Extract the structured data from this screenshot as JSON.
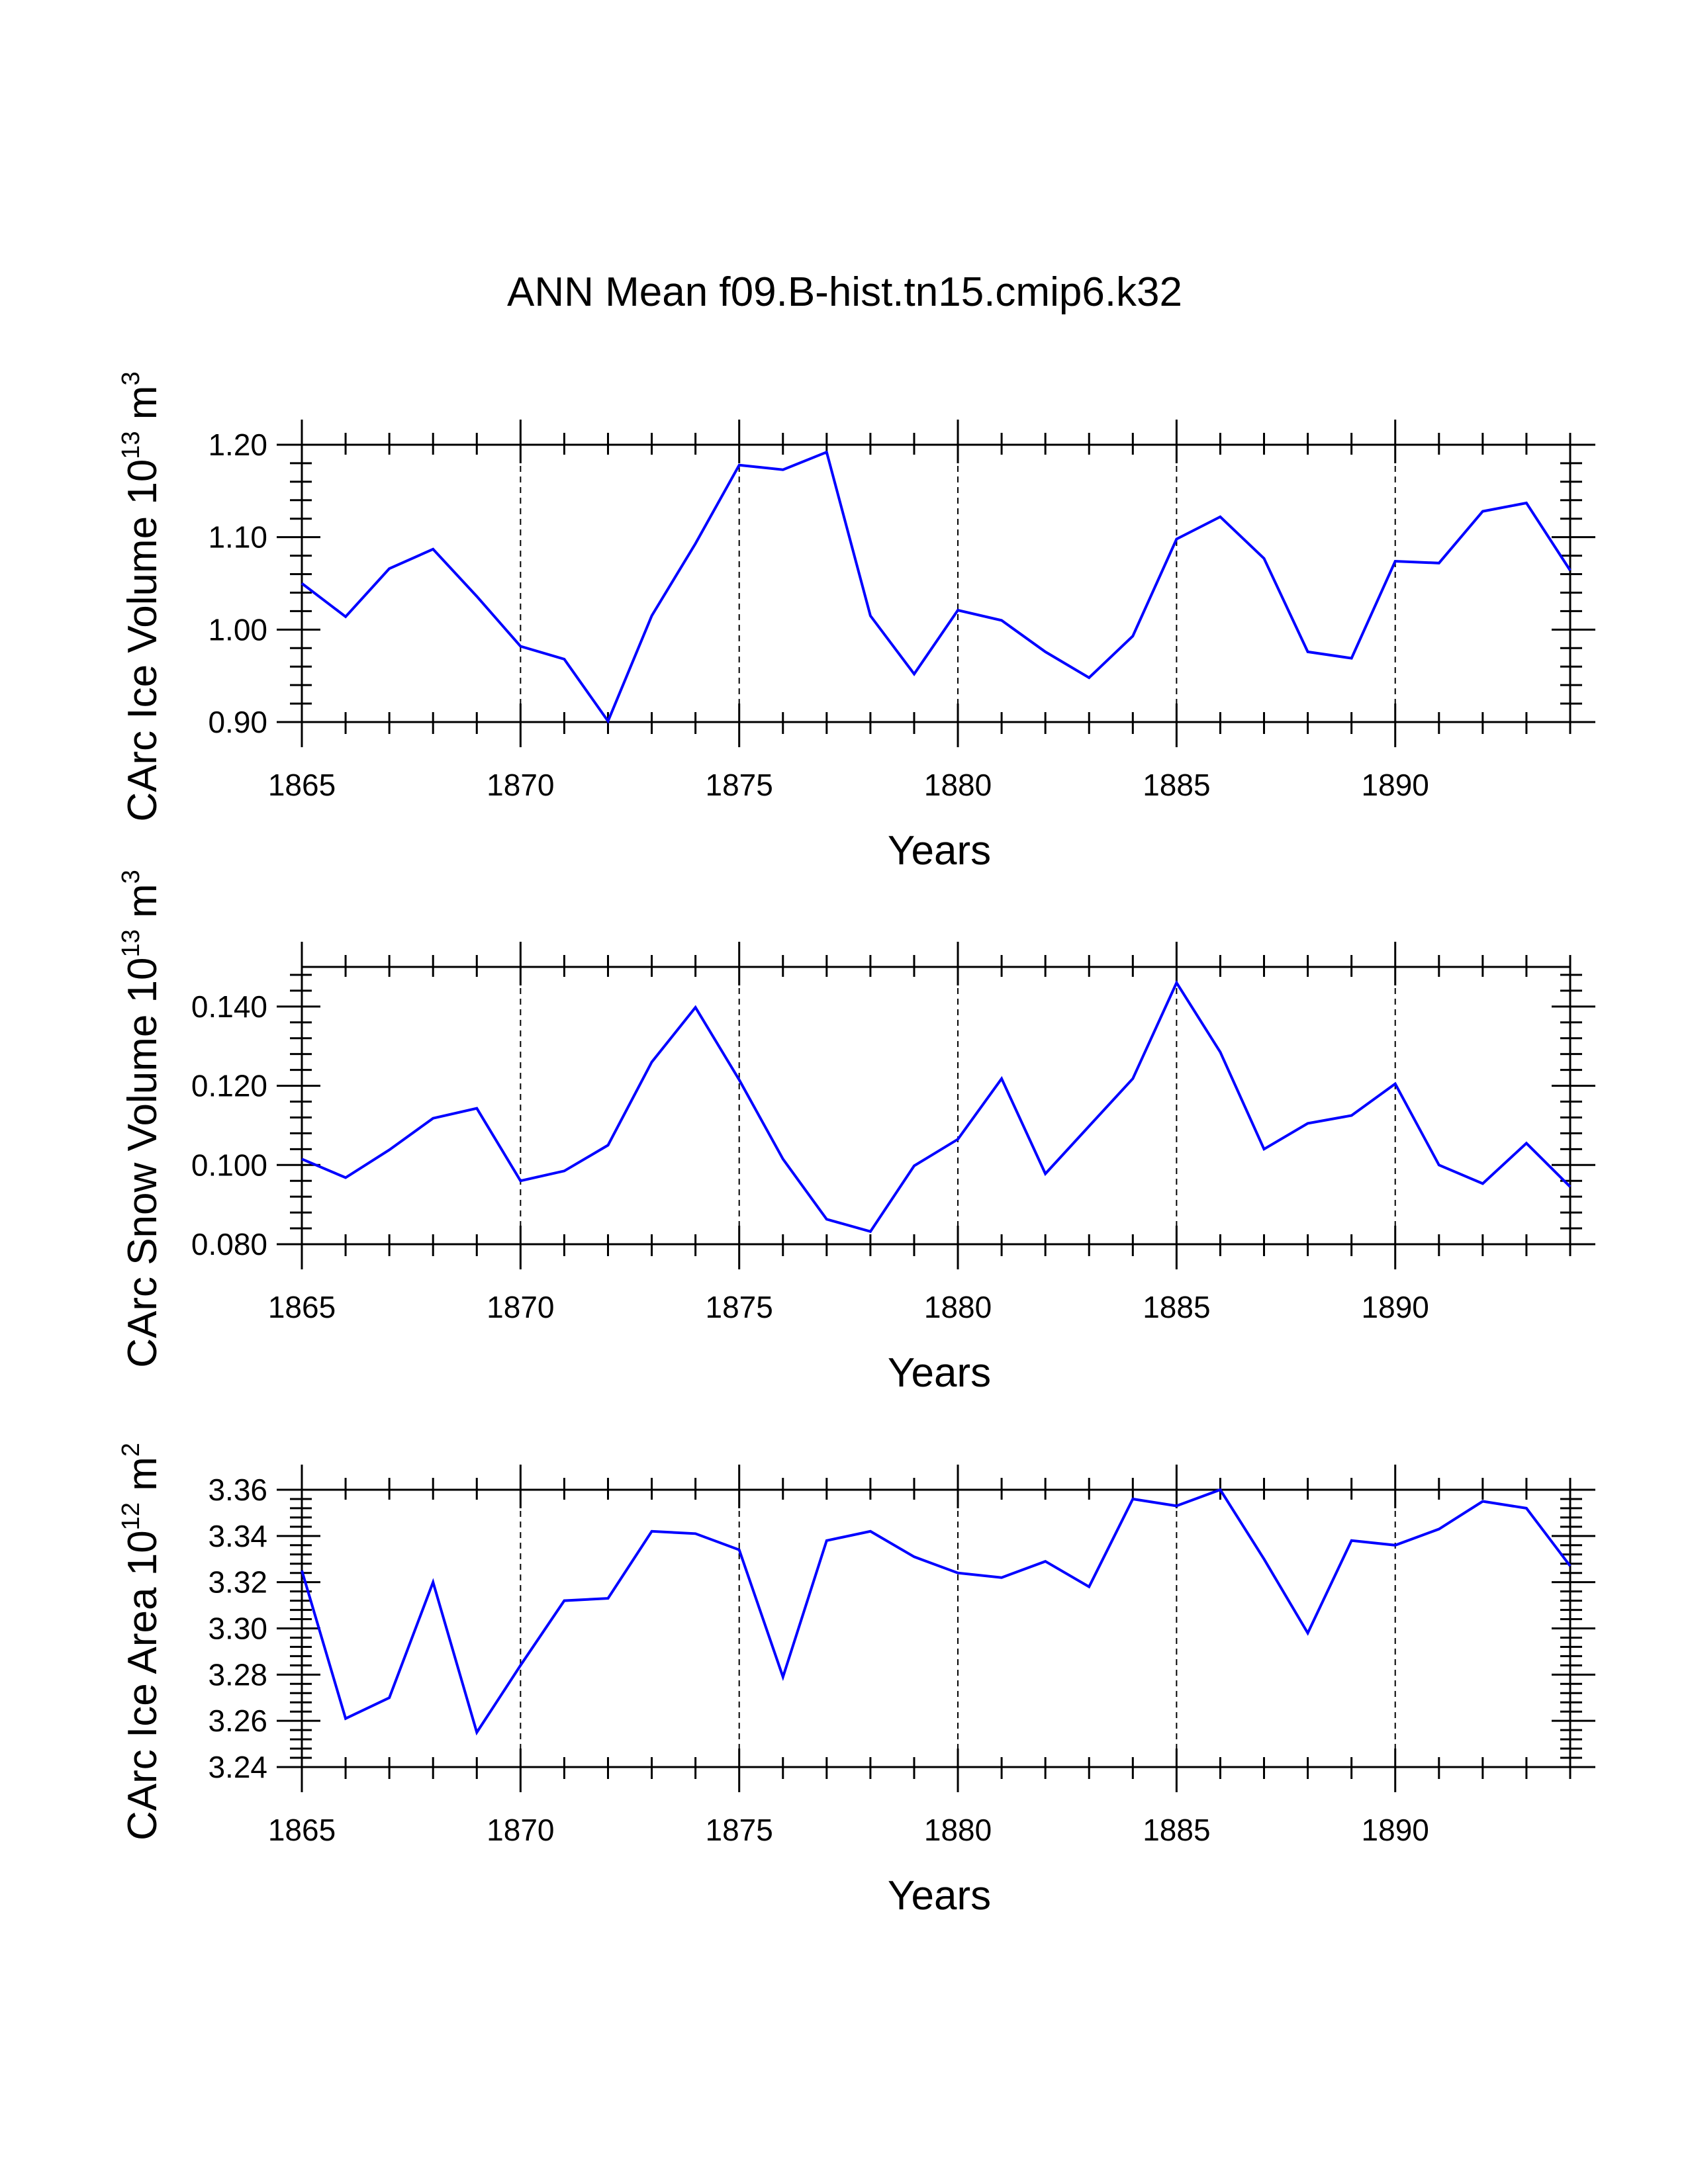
{
  "chart_data": {
    "title": "ANN Mean f09.B-hist.tn15.cmip6.k32",
    "panels": [
      {
        "type": "line",
        "ylabel": {
          "text": "CArc Ice Volume 10",
          "exponent": "13",
          "unit": " m",
          "unit_exponent": "3"
        },
        "xlabel": "Years",
        "xlim": [
          1865,
          1894
        ],
        "ylim": [
          0.9,
          1.2
        ],
        "xticks": [
          1865,
          1870,
          1875,
          1880,
          1885,
          1890
        ],
        "yticks": [
          0.9,
          1.0,
          1.1,
          1.2
        ],
        "ytick_labels": [
          "0.90",
          "1.00",
          "1.10",
          "1.20"
        ],
        "dashed_gridlines_x": [
          1870,
          1875,
          1880,
          1885,
          1890
        ],
        "line_color": "#0000ff",
        "x": [
          1865,
          1866,
          1867,
          1868,
          1869,
          1870,
          1871,
          1872,
          1873,
          1874,
          1875,
          1876,
          1877,
          1878,
          1879,
          1880,
          1881,
          1882,
          1883,
          1884,
          1885,
          1886,
          1887,
          1888,
          1889,
          1890,
          1891,
          1892,
          1893,
          1894
        ],
        "values": [
          1.05,
          1.014,
          1.066,
          1.087,
          1.036,
          0.982,
          0.968,
          0.901,
          1.015,
          1.093,
          1.178,
          1.173,
          1.192,
          1.015,
          0.952,
          1.021,
          1.01,
          0.976,
          0.948,
          0.993,
          1.098,
          1.122,
          1.077,
          0.976,
          0.969,
          1.074,
          1.072,
          1.128,
          1.137,
          1.064
        ]
      },
      {
        "type": "line",
        "ylabel": {
          "text": "CArc Snow Volume 10",
          "exponent": "13",
          "unit": " m",
          "unit_exponent": "3"
        },
        "xlabel": "Years",
        "xlim": [
          1865,
          1894
        ],
        "ylim": [
          0.08,
          0.15
        ],
        "xticks": [
          1865,
          1870,
          1875,
          1880,
          1885,
          1890
        ],
        "yticks": [
          0.08,
          0.1,
          0.12,
          0.14
        ],
        "ytick_labels": [
          "0.080",
          "0.100",
          "0.120",
          "0.140"
        ],
        "dashed_gridlines_x": [
          1870,
          1875,
          1880,
          1885,
          1890
        ],
        "line_color": "#0000ff",
        "x": [
          1865,
          1866,
          1867,
          1868,
          1869,
          1870,
          1871,
          1872,
          1873,
          1874,
          1875,
          1876,
          1877,
          1878,
          1879,
          1880,
          1881,
          1882,
          1883,
          1884,
          1885,
          1886,
          1887,
          1888,
          1889,
          1890,
          1891,
          1892,
          1893,
          1894
        ],
        "values": [
          0.1015,
          0.0968,
          0.1038,
          0.1118,
          0.1143,
          0.096,
          0.0985,
          0.105,
          0.126,
          0.1398,
          0.1215,
          0.1015,
          0.0863,
          0.0832,
          0.0998,
          0.1065,
          0.1218,
          0.0978,
          0.1098,
          0.1218,
          0.146,
          0.1285,
          0.104,
          0.1105,
          0.1125,
          0.1205,
          0.1,
          0.0953,
          0.1055,
          0.0945
        ]
      },
      {
        "type": "line",
        "ylabel": {
          "text": "CArc Ice Area 10",
          "exponent": "12",
          "unit": " m",
          "unit_exponent": "2"
        },
        "xlabel": "Years",
        "xlim": [
          1865,
          1894
        ],
        "ylim": [
          3.24,
          3.36
        ],
        "xticks": [
          1865,
          1870,
          1875,
          1880,
          1885,
          1890
        ],
        "yticks": [
          3.24,
          3.26,
          3.28,
          3.3,
          3.32,
          3.34,
          3.36
        ],
        "ytick_labels": [
          "3.24",
          "3.26",
          "3.28",
          "3.30",
          "3.32",
          "3.34",
          "3.36"
        ],
        "dashed_gridlines_x": [
          1870,
          1875,
          1880,
          1885,
          1890
        ],
        "line_color": "#0000ff",
        "x": [
          1865,
          1866,
          1867,
          1868,
          1869,
          1870,
          1871,
          1872,
          1873,
          1874,
          1875,
          1876,
          1877,
          1878,
          1879,
          1880,
          1881,
          1882,
          1883,
          1884,
          1885,
          1886,
          1887,
          1888,
          1889,
          1890,
          1891,
          1892,
          1893,
          1894
        ],
        "values": [
          3.325,
          3.261,
          3.27,
          3.32,
          3.255,
          3.284,
          3.312,
          3.313,
          3.342,
          3.341,
          3.334,
          3.279,
          3.338,
          3.342,
          3.331,
          3.324,
          3.322,
          3.329,
          3.318,
          3.356,
          3.353,
          3.36,
          3.33,
          3.298,
          3.338,
          3.336,
          3.343,
          3.355,
          3.352,
          3.327
        ]
      }
    ]
  }
}
